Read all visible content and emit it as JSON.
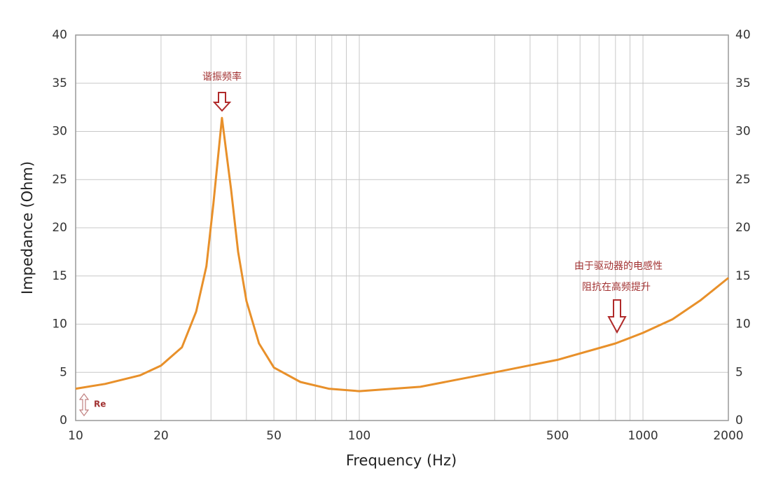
{
  "chart_data": {
    "type": "line",
    "xlabel": "Frequency (Hz)",
    "ylabel": "Impedance (Ohm)",
    "xscale": "log",
    "xlim": [
      10,
      2000
    ],
    "ylim": [
      0,
      40
    ],
    "xticks": [
      10,
      20,
      50,
      100,
      500,
      1000,
      2000
    ],
    "xgrid": [
      30,
      40,
      60,
      70,
      80,
      90,
      300,
      400,
      600,
      700,
      800,
      900
    ],
    "yticks": [
      0,
      5,
      10,
      15,
      20,
      25,
      30,
      35,
      40
    ],
    "grid": true,
    "right_axis": true,
    "annotations": [
      "谐振频率",
      "由于驱动器的电感性",
      "阻抗在高频提升",
      "Re"
    ],
    "series": [
      {
        "name": "Impedance",
        "color": "#e8902a",
        "x": [
          10,
          12.7,
          16.9,
          20,
          23.7,
          26.6,
          28.9,
          30.6,
          32.8,
          35.3,
          37.4,
          40,
          44.3,
          50,
          62,
          78,
          100,
          164,
          300,
          500,
          800,
          1000,
          1270,
          1600,
          2000
        ],
        "values": [
          3.3,
          3.8,
          4.7,
          5.7,
          7.6,
          11.3,
          16,
          22.5,
          31.4,
          24,
          17.5,
          12.4,
          8,
          5.5,
          4,
          3.3,
          3.05,
          3.5,
          5,
          6.3,
          8,
          9.1,
          10.5,
          12.5,
          14.8
        ]
      }
    ]
  }
}
